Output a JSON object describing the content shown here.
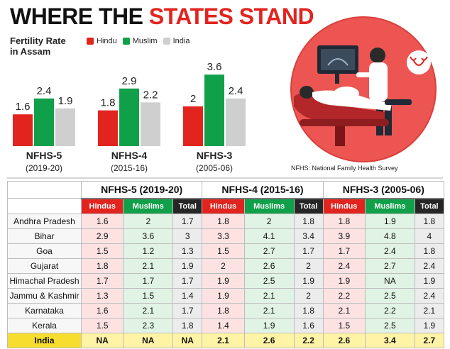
{
  "title": {
    "part1": "WHERE THE",
    "part2": "STATES STAND"
  },
  "chart_data": {
    "type": "bar",
    "title": "Fertility Rate in Assam",
    "categories": [
      "NFHS-5",
      "NFHS-4",
      "NFHS-3"
    ],
    "category_years": [
      "(2019-20)",
      "(2015-16)",
      "(2005-06)"
    ],
    "series": [
      {
        "name": "Hindu",
        "color": "#e2241f",
        "values": [
          1.6,
          1.8,
          2
        ]
      },
      {
        "name": "Muslim",
        "color": "#11a04a",
        "values": [
          2.4,
          2.9,
          3.6
        ]
      },
      {
        "name": "India",
        "color": "#cfcfcf",
        "values": [
          1.9,
          2.2,
          2.4
        ]
      }
    ],
    "value_labels": [
      [
        "1.6",
        "2.4",
        "1.9"
      ],
      [
        "1.8",
        "2.9",
        "2.2"
      ],
      [
        "2",
        "3.6",
        "2.4"
      ]
    ],
    "ylim": [
      0,
      4
    ],
    "grid": false,
    "legend_position": "top"
  },
  "illustration_caption": "NFHS: National Family Health Survey",
  "table": {
    "groups": [
      "NFHS-5 (2019-20)",
      "NFHS-4 (2015-16)",
      "NFHS-3 (2005-06)"
    ],
    "subheaders": [
      "Hindus",
      "Muslims",
      "Total"
    ],
    "rows": [
      {
        "state": "Andhra Pradesh",
        "values": [
          "1.6",
          "2",
          "1.7",
          "1.8",
          "2",
          "1.8",
          "1.8",
          "1.9",
          "1.8"
        ]
      },
      {
        "state": "Bihar",
        "values": [
          "2.9",
          "3.6",
          "3",
          "3.3",
          "4.1",
          "3.4",
          "3.9",
          "4.8",
          "4"
        ]
      },
      {
        "state": "Goa",
        "values": [
          "1.5",
          "1.2",
          "1.3",
          "1.5",
          "2.7",
          "1.7",
          "1.7",
          "2.4",
          "1.8"
        ]
      },
      {
        "state": "Gujarat",
        "values": [
          "1.8",
          "2.1",
          "1.9",
          "2",
          "2.6",
          "2",
          "2.4",
          "2.7",
          "2.4"
        ]
      },
      {
        "state": "Himachal Pradesh",
        "values": [
          "1.7",
          "1.7",
          "1.7",
          "1.9",
          "2.5",
          "1.9",
          "1.9",
          "NA",
          "1.9"
        ]
      },
      {
        "state": "Jammu & Kashmir",
        "values": [
          "1.3",
          "1.5",
          "1.4",
          "1.9",
          "2.1",
          "2",
          "2.2",
          "2.5",
          "2.4"
        ]
      },
      {
        "state": "Karnataka",
        "values": [
          "1.6",
          "2.1",
          "1.7",
          "1.8",
          "2.1",
          "1.8",
          "2.1",
          "2.2",
          "2.1"
        ]
      },
      {
        "state": "Kerala",
        "values": [
          "1.5",
          "2.3",
          "1.8",
          "1.4",
          "1.9",
          "1.6",
          "1.5",
          "2.5",
          "1.9"
        ]
      }
    ],
    "india_row": {
      "state": "India",
      "values": [
        "NA",
        "NA",
        "NA",
        "2.1",
        "2.6",
        "2.2",
        "2.6",
        "3.4",
        "2.7"
      ]
    }
  }
}
